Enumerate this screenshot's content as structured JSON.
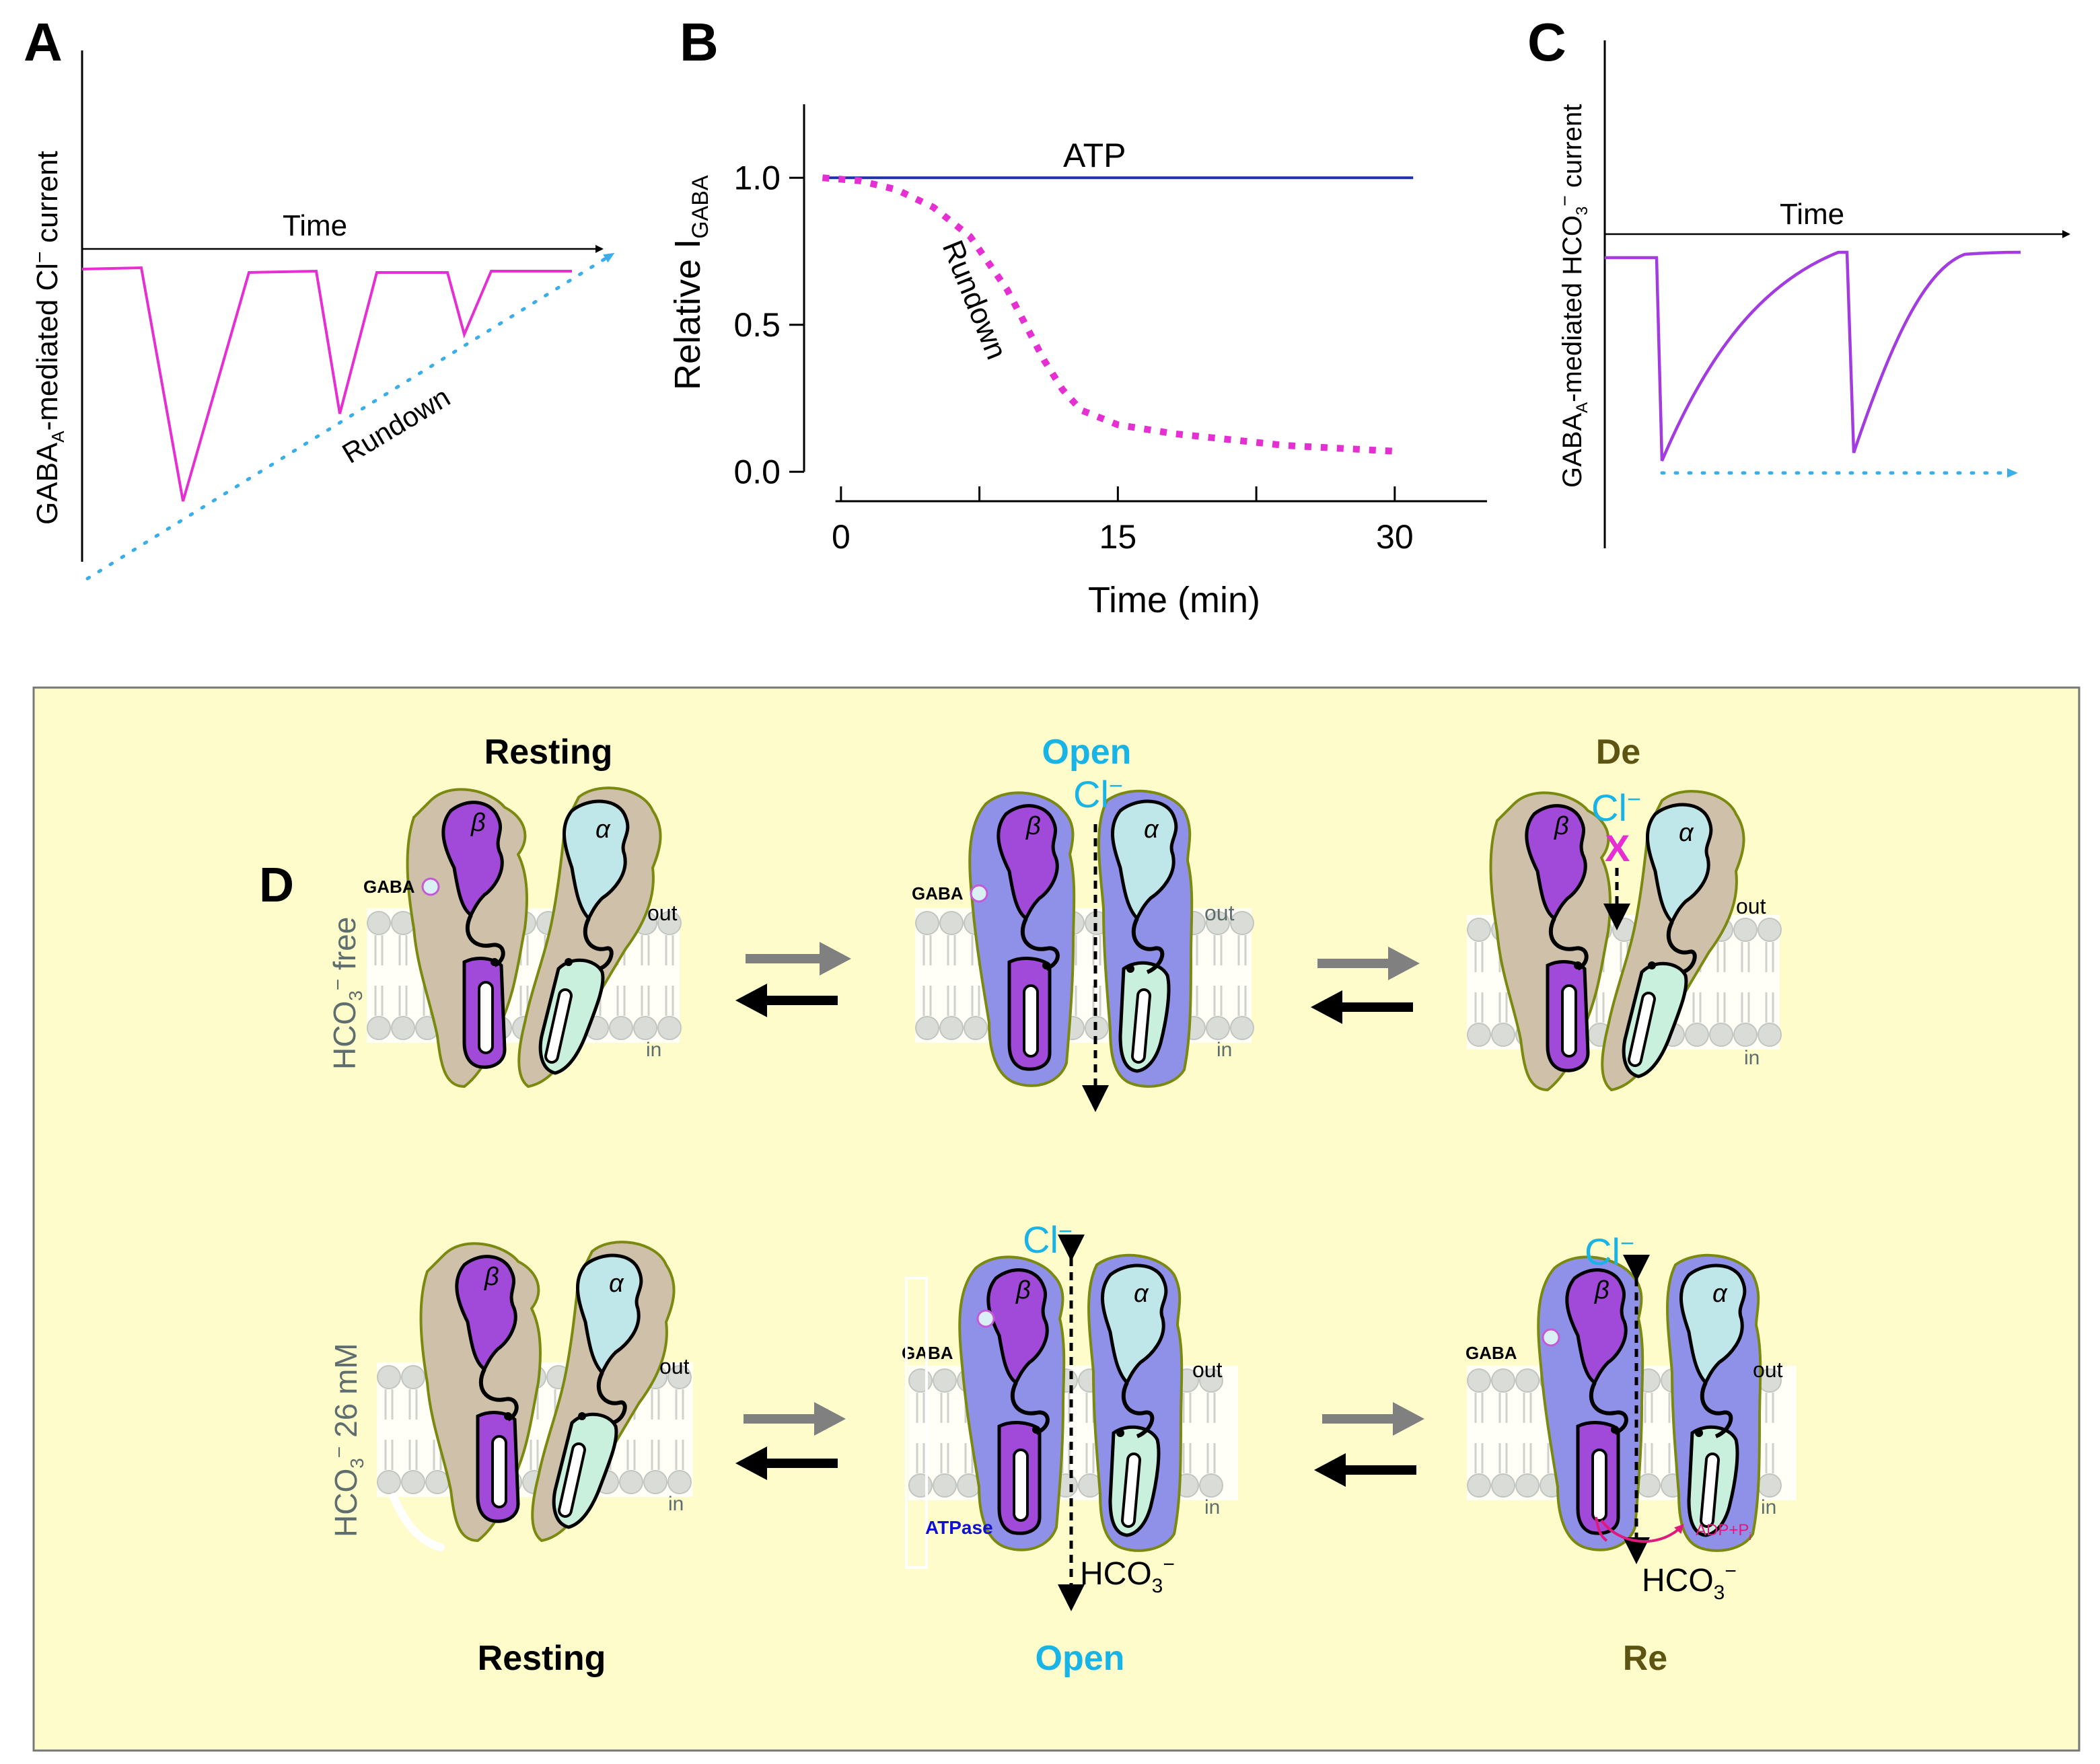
{
  "panel_labels": {
    "a": "A",
    "b": "B",
    "c": "C",
    "d": "D"
  },
  "colors": {
    "magenta": "#e62fd2",
    "blue_line": "#1f2fb0",
    "light_blue": "#3aaee8",
    "cyan_text": "#19b4e6",
    "purple": "#a23be0",
    "olive": "#5c5410",
    "yellow_bg": "#fffccc",
    "beta": "#a14ad9",
    "alpha": "#bfe6e8",
    "gate": "#c8f0dc",
    "shadow": "#cfc0aa",
    "open_shadow": "#8f90e8",
    "membrane": "#d9dcd7",
    "grey_arrow": "#808080",
    "atpase": "#1010d0",
    "adp": "#e0197d"
  },
  "panel_a": {
    "ylabel_main": "GABA",
    "ylabel_sub": "A",
    "ylabel_rest": "-mediated Cl",
    "ylabel_sup": "−",
    "ylabel_end": " current",
    "time_label": "Time",
    "rundown_label": "Rundown"
  },
  "chart_data": {
    "type": "line",
    "title": "",
    "xlabel": "Time (min)",
    "ylabel_main": "Relative I",
    "ylabel_sub": "GABA",
    "xlim": [
      -2,
      35
    ],
    "ylim": [
      -0.1,
      1.25
    ],
    "xticks": [
      0,
      15,
      30
    ],
    "xtick_labels": [
      "0",
      "15",
      "30"
    ],
    "yticks": [
      0.0,
      0.5,
      1.0
    ],
    "ytick_labels": [
      "0.0",
      "0.5",
      "1.0"
    ],
    "series": [
      {
        "name": "ATP",
        "style": "solid",
        "x": [
          -1,
          31
        ],
        "y": [
          1.0,
          1.0
        ]
      },
      {
        "name": "Rundown",
        "style": "dotted",
        "x": [
          -1,
          1,
          3,
          5,
          7,
          9,
          10,
          11,
          12,
          13,
          15,
          18,
          21,
          24,
          27,
          30
        ],
        "y": [
          1.0,
          0.99,
          0.96,
          0.9,
          0.8,
          0.62,
          0.5,
          0.38,
          0.28,
          0.21,
          0.16,
          0.13,
          0.11,
          0.09,
          0.08,
          0.07
        ]
      }
    ]
  },
  "panel_c": {
    "ylabel_main": "GABA",
    "ylabel_sub": "A",
    "ylabel_rest": "-mediated HCO",
    "ylabel_sub2": "3",
    "ylabel_sup": "−",
    "ylabel_end": " current",
    "time_label": "Time"
  },
  "panel_d": {
    "states_top": [
      "Resting",
      "Open",
      "De"
    ],
    "states_bottom": [
      "Resting",
      "Open",
      "Re"
    ],
    "row1_condition": "HCO",
    "row1_condition_sub": "3",
    "row1_condition_sup": "−",
    "row1_condition_end": " free",
    "row2_condition": "HCO",
    "row2_condition_sub": "3",
    "row2_condition_sup": "−",
    "row2_condition_end": " 26 mM",
    "gaba": "GABA",
    "out": "out",
    "in": "in",
    "beta": "β",
    "alpha": "α",
    "cl": "Cl",
    "cl_sup": "−",
    "block": "X",
    "hco3": "HCO",
    "hco3_sub": "3",
    "hco3_sup": "−",
    "atpase": "ATPase",
    "adp": "ADP+P",
    "adp_sub": "i"
  }
}
